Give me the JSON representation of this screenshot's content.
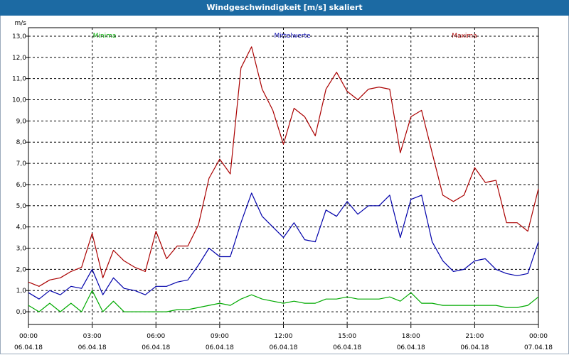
{
  "window": {
    "title": "Windgeschwindigkeit [m/s] skaliert"
  },
  "legend": {
    "min": "Minima",
    "mean": "Mittelwerte",
    "max": "Maxima"
  },
  "colors": {
    "min": "#00aa00",
    "mean": "#0000aa",
    "max": "#aa0000",
    "title_bar": "#1c6aa3"
  },
  "chart_data": {
    "type": "line",
    "title": "Windgeschwindigkeit [m/s] skaliert",
    "ylabel": "m/s",
    "ylim": [
      -0.6,
      13.4
    ],
    "yticks": [
      "0,0",
      "1,0",
      "2,0",
      "3,0",
      "4,0",
      "5,0",
      "6,0",
      "7,0",
      "8,0",
      "9,0",
      "10,0",
      "11,0",
      "12,0",
      "13,0"
    ],
    "xlim": [
      0,
      24
    ],
    "x_tick_hours": [
      0,
      3,
      6,
      9,
      12,
      15,
      18,
      21,
      24
    ],
    "x_tick_times": [
      "00:00",
      "03:00",
      "06:00",
      "09:00",
      "12:00",
      "15:00",
      "18:00",
      "21:00",
      "00:00"
    ],
    "x_tick_dates": [
      "06.04.18",
      "06.04.18",
      "06.04.18",
      "06.04.18",
      "06.04.18",
      "06.04.18",
      "06.04.18",
      "06.04.18",
      "07.04.18"
    ],
    "grid": true,
    "x_hours": [
      0,
      0.5,
      1,
      1.5,
      2,
      2.5,
      3,
      3.5,
      4,
      4.5,
      5,
      5.5,
      6,
      6.5,
      7,
      7.5,
      8,
      8.5,
      9,
      9.5,
      10,
      10.5,
      11,
      11.5,
      12,
      12.5,
      13,
      13.5,
      14,
      14.5,
      15,
      15.5,
      16,
      16.5,
      17,
      17.5,
      18,
      18.5,
      19,
      19.5,
      20,
      20.5,
      21,
      21.5,
      22,
      22.5,
      23,
      23.5,
      24
    ],
    "series": [
      {
        "name": "Maxima",
        "values": [
          1.4,
          1.2,
          1.5,
          1.6,
          1.9,
          2.1,
          3.7,
          1.6,
          2.9,
          2.4,
          2.1,
          1.9,
          3.8,
          2.5,
          3.1,
          3.1,
          4.1,
          6.3,
          7.2,
          6.5,
          11.5,
          12.5,
          10.5,
          9.5,
          7.9,
          9.6,
          9.2,
          8.3,
          10.5,
          11.3,
          10.4,
          10.0,
          10.5,
          10.6,
          10.5,
          7.5,
          9.2,
          9.5,
          7.5,
          5.5,
          5.2,
          5.5,
          6.8,
          6.1,
          6.2,
          4.2,
          4.2,
          3.8,
          5.8
        ]
      },
      {
        "name": "Mittelwerte",
        "values": [
          0.9,
          0.6,
          1.0,
          0.8,
          1.2,
          1.1,
          2.0,
          0.8,
          1.6,
          1.1,
          1.0,
          0.8,
          1.2,
          1.2,
          1.4,
          1.5,
          2.2,
          3.0,
          2.6,
          2.6,
          4.2,
          5.6,
          4.5,
          4.0,
          3.5,
          4.2,
          3.4,
          3.3,
          4.8,
          4.5,
          5.2,
          4.6,
          5.0,
          5.0,
          5.5,
          3.5,
          5.3,
          5.5,
          3.3,
          2.4,
          1.9,
          2.0,
          2.4,
          2.5,
          2.0,
          1.8,
          1.7,
          1.8,
          3.3
        ]
      },
      {
        "name": "Minima",
        "values": [
          0.3,
          0.0,
          0.4,
          0.0,
          0.4,
          0.0,
          1.0,
          0.0,
          0.5,
          0.0,
          0.0,
          0.0,
          0.0,
          0.0,
          0.1,
          0.1,
          0.2,
          0.3,
          0.4,
          0.3,
          0.6,
          0.8,
          0.6,
          0.5,
          0.4,
          0.5,
          0.4,
          0.4,
          0.6,
          0.6,
          0.7,
          0.6,
          0.6,
          0.6,
          0.7,
          0.5,
          0.9,
          0.4,
          0.4,
          0.3,
          0.3,
          0.3,
          0.3,
          0.3,
          0.3,
          0.2,
          0.2,
          0.3,
          0.7
        ]
      }
    ]
  }
}
